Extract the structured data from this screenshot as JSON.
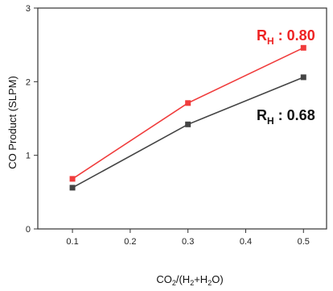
{
  "chart_data": {
    "type": "line",
    "x": [
      0.1,
      0.3,
      0.5
    ],
    "xticks": [
      0.1,
      0.2,
      0.3,
      0.4,
      0.5
    ],
    "yticks": [
      0,
      1,
      2,
      3
    ],
    "xlim": [
      0.04,
      0.54
    ],
    "ylim": [
      0,
      3
    ],
    "xlabel": {
      "main": "CO",
      "sub1": "2",
      "mid": "/(H",
      "sub2": "2",
      "tail": "+H",
      "sub3": "2",
      "end": "O)"
    },
    "ylabel": "CO Product (SLPM)",
    "grid": false,
    "series": [
      {
        "values": [
          0.68,
          1.71,
          2.46
        ],
        "color": "#f03c3c",
        "marker": "square"
      },
      {
        "values": [
          0.56,
          1.42,
          2.06
        ],
        "color": "#444444",
        "marker": "square"
      }
    ],
    "annotations": [
      {
        "main": "R",
        "sub": "H",
        "value": " : 0.80",
        "color": "#ee2222",
        "series": 0
      },
      {
        "main": "R",
        "sub": "H",
        "value": " : 0.68",
        "color": "#111111",
        "series": 1
      }
    ]
  }
}
